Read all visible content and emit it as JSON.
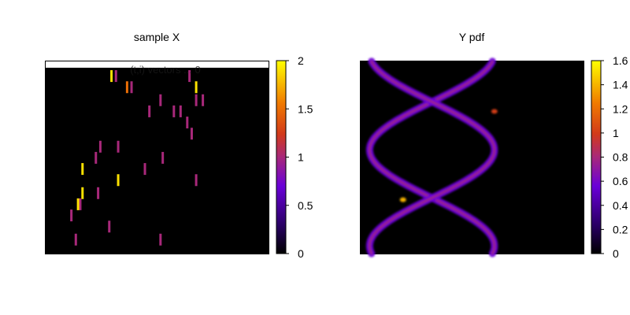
{
  "chart_data": [
    {
      "type": "heatmap",
      "title": "sample X",
      "overlay_text": "(t,i) vectors ... 0",
      "colormap": [
        "#000000",
        "#4f00c4",
        "#c43a28",
        "#ffff00"
      ],
      "colorbar": {
        "range": [
          0,
          2
        ],
        "ticks": [
          "0",
          "0.5",
          "1",
          "1.5",
          "2"
        ]
      },
      "note": "sparse sample points on black background",
      "marks": [
        {
          "x": 0.29,
          "y": 0.03,
          "v": 1.9
        },
        {
          "x": 0.31,
          "y": 0.03,
          "v": 1.0
        },
        {
          "x": 0.36,
          "y": 0.09,
          "v": 1.5
        },
        {
          "x": 0.38,
          "y": 0.09,
          "v": 1.0
        },
        {
          "x": 0.64,
          "y": 0.03,
          "v": 1.0
        },
        {
          "x": 0.67,
          "y": 0.09,
          "v": 1.9
        },
        {
          "x": 0.67,
          "y": 0.16,
          "v": 1.0
        },
        {
          "x": 0.7,
          "y": 0.16,
          "v": 1.0
        },
        {
          "x": 0.51,
          "y": 0.16,
          "v": 1.0
        },
        {
          "x": 0.46,
          "y": 0.22,
          "v": 1.0
        },
        {
          "x": 0.57,
          "y": 0.22,
          "v": 1.0
        },
        {
          "x": 0.6,
          "y": 0.22,
          "v": 1.0
        },
        {
          "x": 0.63,
          "y": 0.28,
          "v": 1.0
        },
        {
          "x": 0.65,
          "y": 0.34,
          "v": 1.0
        },
        {
          "x": 0.24,
          "y": 0.41,
          "v": 1.0
        },
        {
          "x": 0.32,
          "y": 0.41,
          "v": 1.0
        },
        {
          "x": 0.22,
          "y": 0.47,
          "v": 1.0
        },
        {
          "x": 0.52,
          "y": 0.47,
          "v": 1.0
        },
        {
          "x": 0.16,
          "y": 0.53,
          "v": 1.9
        },
        {
          "x": 0.44,
          "y": 0.53,
          "v": 1.0
        },
        {
          "x": 0.32,
          "y": 0.59,
          "v": 1.9
        },
        {
          "x": 0.67,
          "y": 0.59,
          "v": 1.0
        },
        {
          "x": 0.16,
          "y": 0.66,
          "v": 1.9
        },
        {
          "x": 0.23,
          "y": 0.66,
          "v": 1.0
        },
        {
          "x": 0.15,
          "y": 0.72,
          "v": 1.0
        },
        {
          "x": 0.14,
          "y": 0.72,
          "v": 1.9
        },
        {
          "x": 0.11,
          "y": 0.78,
          "v": 1.0
        },
        {
          "x": 0.28,
          "y": 0.84,
          "v": 1.0
        },
        {
          "x": 0.13,
          "y": 0.91,
          "v": 1.0
        },
        {
          "x": 0.51,
          "y": 0.91,
          "v": 1.0
        }
      ]
    },
    {
      "type": "heatmap",
      "title": "Y pdf",
      "colormap": [
        "#000000",
        "#4f00c4",
        "#c43a28",
        "#ffff00"
      ],
      "colorbar": {
        "range": [
          0,
          1.6
        ],
        "ticks": [
          "0",
          "0.2",
          "0.4",
          "0.6",
          "0.8",
          "1",
          "1.2",
          "1.4",
          "1.6"
        ]
      },
      "note": "two intertwined sinusoidal density bands on black background",
      "bands": [
        {
          "phase": 0.0,
          "intensity": 0.75
        },
        {
          "phase": 3.14159,
          "intensity": 0.75
        }
      ],
      "peaks": [
        {
          "x": 0.19,
          "y": 0.72,
          "v": 1.4
        },
        {
          "x": 0.6,
          "y": 0.26,
          "v": 1.0
        }
      ]
    }
  ]
}
